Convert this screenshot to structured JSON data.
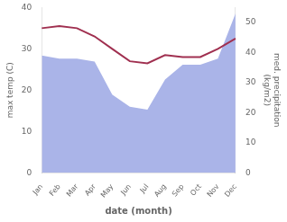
{
  "chart_data": {
    "type": "line",
    "xlabel": "date (month)",
    "ylabel": "max temp (C)",
    "y2label": "med. precipitation\n(kg/m2)",
    "categories": [
      "Jan",
      "Feb",
      "Mar",
      "Apr",
      "May",
      "Jun",
      "Jul",
      "Aug",
      "Sep",
      "Oct",
      "Nov",
      "Dec"
    ],
    "series": [
      {
        "type": "area",
        "color": "#aab4e8",
        "axis": "y2",
        "values": [
          39,
          38,
          38,
          37,
          26,
          22,
          21,
          31,
          36,
          36,
          38,
          53
        ]
      },
      {
        "type": "line",
        "color": "#a03050",
        "values": [
          35,
          35.5,
          35,
          33,
          30,
          27,
          26.5,
          28.5,
          28,
          28,
          30,
          32.5
        ]
      }
    ],
    "ylim": [
      0,
      40
    ],
    "yticks": [
      0,
      10,
      20,
      30,
      40
    ],
    "y2lim": [
      0,
      55
    ],
    "y2ticks": [
      0,
      10,
      20,
      30,
      40,
      50
    ],
    "grid": false
  }
}
